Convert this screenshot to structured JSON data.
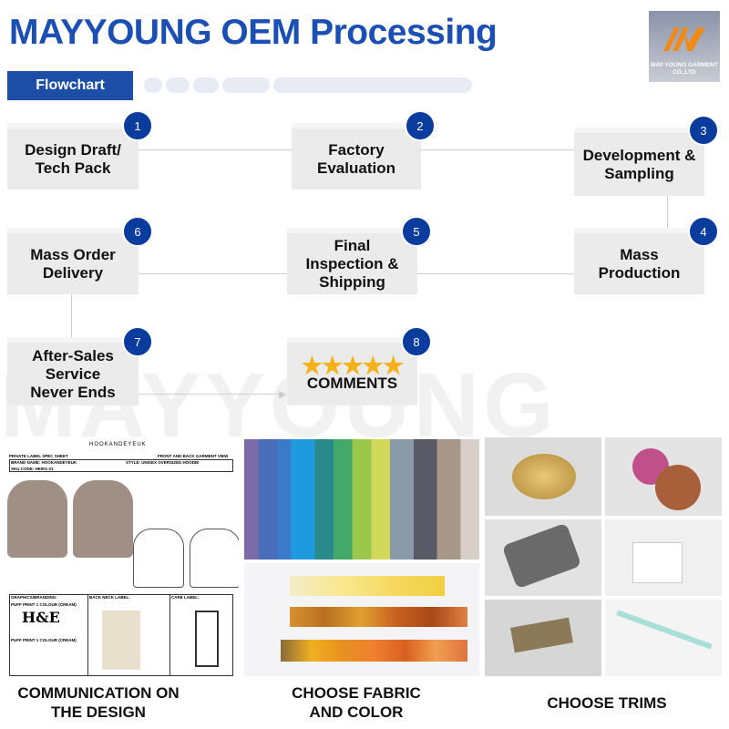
{
  "header": {
    "title": "MAYYOUNG OEM  Processing",
    "logo_text": "MAY YOUNG GARMENT CO.,LTD",
    "section_button": "Flowchart"
  },
  "watermark": "MAYYOUNG",
  "steps": [
    {
      "num": "1",
      "label": "Design Draft/ Tech Pack"
    },
    {
      "num": "2",
      "label": "Factory Evaluation"
    },
    {
      "num": "3",
      "label": "Development & Sampling"
    },
    {
      "num": "4",
      "label": "Mass Production"
    },
    {
      "num": "5",
      "label": "Final Inspection & Shipping"
    },
    {
      "num": "6",
      "label": "Mass Order Delivery"
    },
    {
      "num": "7",
      "label": "After-Sales Service Never Ends"
    },
    {
      "num": "8",
      "label": "COMMENTS",
      "stars": "★★★★★",
      "rating": 5
    }
  ],
  "spec_sheet": {
    "brand": "HOOKANDEYEUK",
    "title": "PRIVATE LABEL SPEC SHEET",
    "view": "FRONT AND BACK GARMENT VIEW",
    "brand_name": "BRAND NAME: HOOKANDEYEUK",
    "style": "STYLE: UNISEX OVERSIZED HOODIE",
    "sku": "SKU CODE: HE001 01",
    "graphics": "GRAPHICS/BRANDING:",
    "back_neck": "BACK NECK LABEL:",
    "care": "CARE LABEL:",
    "logo": "H&E",
    "print1": "PUFF PRINT 1 COLOUR (CREAM)",
    "print2": "PUFF PRINT 1 COLOUR (CREAM)"
  },
  "captions": {
    "design": "COMMUNICATION ON THE DESIGN",
    "fabric": "CHOOSE FABRIC AND COLOR",
    "trims": "CHOOSE TRIMS"
  },
  "colors": {
    "brand_blue": "#1b4fb3",
    "badge": "#0a3c9e",
    "star": "#f3b21a",
    "box": "#ebebeb"
  }
}
